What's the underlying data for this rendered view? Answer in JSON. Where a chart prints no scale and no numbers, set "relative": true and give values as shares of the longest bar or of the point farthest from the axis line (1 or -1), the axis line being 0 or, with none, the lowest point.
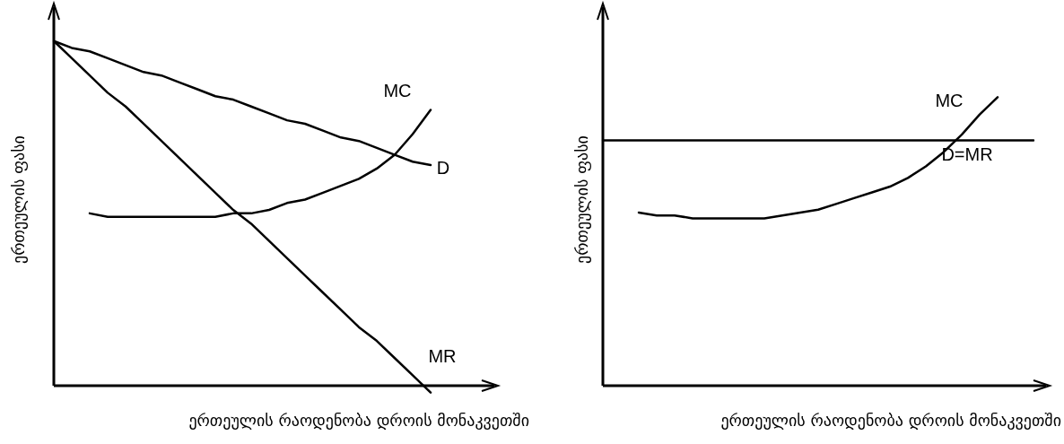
{
  "chart_data": [
    {
      "type": "line",
      "relative": true,
      "xlabel": "ერთეულის რაოდენობა დროის მონაკვეთში",
      "ylabel": "ერთეულის ფასი",
      "marker": "none",
      "legend": false,
      "categories": [
        null,
        null,
        null,
        null,
        null,
        null,
        null,
        null,
        null,
        null,
        null,
        null,
        null,
        null,
        null,
        null,
        null,
        null,
        null,
        null,
        null,
        null,
        null,
        null,
        null
      ],
      "series": [
        {
          "name": "MC",
          "color": "#000000",
          "values": [
            null,
            null,
            0.5,
            0.49,
            0.49,
            0.49,
            0.49,
            0.49,
            0.49,
            0.49,
            0.5,
            0.5,
            0.51,
            0.53,
            0.54,
            0.56,
            0.58,
            0.6,
            0.63,
            0.67,
            0.73,
            0.8,
            null,
            null,
            null
          ]
        },
        {
          "name": "D",
          "color": "#000000",
          "values": [
            1,
            0.98,
            0.97,
            0.95,
            0.93,
            0.91,
            0.9,
            0.88,
            0.86,
            0.84,
            0.83,
            0.81,
            0.79,
            0.77,
            0.76,
            0.74,
            0.72,
            0.71,
            0.69,
            0.67,
            0.65,
            0.64,
            null,
            null,
            null
          ]
        },
        {
          "name": "MR",
          "color": "#000000",
          "values": [
            1,
            0.95,
            0.9,
            0.85,
            0.81,
            0.76,
            0.71,
            0.66,
            0.61,
            0.56,
            0.51,
            0.47,
            0.42,
            0.37,
            0.32,
            0.27,
            0.22,
            0.17,
            0.13,
            0.08,
            0.03,
            -0.02,
            null,
            null,
            null
          ]
        }
      ]
    },
    {
      "type": "line",
      "relative": true,
      "xlabel": "ერთეულის რაოდენობა დროის მონაკვეთში",
      "ylabel": "ერთეულის ფასი",
      "marker": "none",
      "legend": false,
      "categories": [
        null,
        null,
        null,
        null,
        null,
        null,
        null,
        null,
        null,
        null,
        null,
        null,
        null,
        null,
        null,
        null,
        null,
        null,
        null,
        null,
        null,
        null,
        null,
        null,
        null
      ],
      "series": [
        {
          "name": "MC",
          "color": "#000000",
          "values": [
            null,
            null,
            0.6,
            0.59,
            0.59,
            0.58,
            0.58,
            0.58,
            0.58,
            0.58,
            0.59,
            0.6,
            0.61,
            0.63,
            0.65,
            0.67,
            0.69,
            0.72,
            0.76,
            0.81,
            0.87,
            0.94,
            1,
            null,
            null
          ]
        },
        {
          "name": "D=MR",
          "color": "#000000",
          "values": [
            0.85,
            0.85,
            0.85,
            0.85,
            0.85,
            0.85,
            0.85,
            0.85,
            0.85,
            0.85,
            0.85,
            0.85,
            0.85,
            0.85,
            0.85,
            0.85,
            0.85,
            0.85,
            0.85,
            0.85,
            0.85,
            0.85,
            0.85,
            0.85,
            0.85
          ]
        }
      ]
    }
  ]
}
